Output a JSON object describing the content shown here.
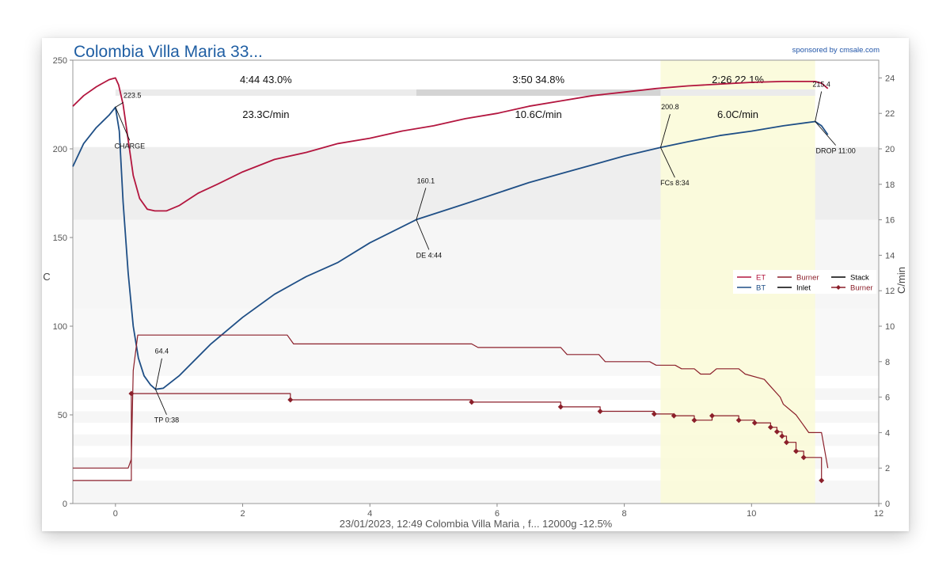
{
  "chart_data": {
    "type": "line",
    "title": "Colombia Villa Maria 33...",
    "sponsor": "sponsored by cmsale.com",
    "footer": "23/01/2023, 12:49 Colombia Villa Maria , f...   12000g   -12.5%",
    "ylabel": "C",
    "y2label": "C/min",
    "xlim": [
      -0.67,
      12
    ],
    "ylim": [
      0,
      250
    ],
    "y2lim": [
      0,
      25
    ],
    "x_ticks": [
      "0",
      "2",
      "4",
      "6",
      "8",
      "10",
      "12"
    ],
    "y_ticks": [
      "0",
      "50",
      "100",
      "150",
      "200",
      "250"
    ],
    "y2_ticks": [
      "0",
      "2",
      "4",
      "6",
      "8",
      "10",
      "12",
      "14",
      "16",
      "18",
      "20",
      "22",
      "24"
    ],
    "phases": [
      {
        "time": "4:44",
        "pct": "43.0%",
        "ror": "23.3C/min"
      },
      {
        "time": "3:50",
        "pct": "34.8%",
        "ror": "10.6C/min"
      },
      {
        "time": "2:26",
        "pct": "22.1%",
        "ror": "6.0C/min"
      }
    ],
    "phase_bounds": [
      0,
      4.73,
      8.57,
      11.0
    ],
    "colors": {
      "ET": "#b3163f",
      "BT": "#1f4f86",
      "Burner": "#8b1f2a",
      "highlight": "#fbfbd9"
    },
    "legend": {
      "position": "right",
      "entries": [
        {
          "name": "ET",
          "color": "#b3163f"
        },
        {
          "name": "Burner",
          "color": "#8b1f2a"
        },
        {
          "name": "Stack",
          "color": "#000000"
        },
        {
          "name": "BT",
          "color": "#1f4f86"
        },
        {
          "name": "Inlet",
          "color": "#000000"
        },
        {
          "name": "Burner",
          "color": "#8b1f2a"
        }
      ]
    },
    "annotations": [
      {
        "label": "223.5",
        "x": 0.0,
        "y": 223.5
      },
      {
        "label": "CHARGE",
        "x": 0.0,
        "y": 223.5
      },
      {
        "label": "64.4",
        "x": 0.63,
        "y": 64.4
      },
      {
        "label": "TP 0:38",
        "x": 0.63,
        "y": 64.4
      },
      {
        "label": "160.1",
        "x": 4.73,
        "y": 160.1
      },
      {
        "label": "DE 4:44",
        "x": 4.73,
        "y": 160.1
      },
      {
        "label": "200.8",
        "x": 8.57,
        "y": 200.8
      },
      {
        "label": "FCs 8:34",
        "x": 8.57,
        "y": 200.8
      },
      {
        "label": "215.4",
        "x": 11.0,
        "y": 215.4
      },
      {
        "label": "DROP 11:00",
        "x": 11.0,
        "y": 215.4
      }
    ],
    "series": [
      {
        "name": "ET",
        "x": [
          -0.67,
          -0.5,
          -0.3,
          -0.1,
          0.0,
          0.05,
          0.12,
          0.2,
          0.28,
          0.38,
          0.5,
          0.62,
          0.8,
          1.0,
          1.3,
          1.6,
          2.0,
          2.5,
          3.0,
          3.5,
          4.0,
          4.5,
          5.0,
          5.5,
          6.0,
          6.5,
          7.0,
          7.5,
          8.0,
          8.5,
          9.0,
          9.5,
          10.0,
          10.5,
          11.0,
          11.1,
          11.2
        ],
        "y": [
          224,
          230,
          235,
          239,
          240,
          236,
          225,
          205,
          185,
          172,
          166,
          165,
          165,
          168,
          175,
          180,
          187,
          194,
          198,
          203,
          206,
          210,
          213,
          217,
          220,
          224,
          227,
          230,
          232,
          234,
          235.5,
          236.5,
          237.5,
          238,
          238,
          237,
          234
        ]
      },
      {
        "name": "BT",
        "x": [
          -0.67,
          -0.5,
          -0.3,
          -0.1,
          0.0,
          0.06,
          0.12,
          0.2,
          0.28,
          0.36,
          0.45,
          0.55,
          0.63,
          0.75,
          1.0,
          1.5,
          2.0,
          2.5,
          3.0,
          3.5,
          4.0,
          4.73,
          5.5,
          6.0,
          6.5,
          7.0,
          7.5,
          8.0,
          8.57,
          9.0,
          9.5,
          10.0,
          10.5,
          11.0,
          11.1,
          11.2
        ],
        "y": [
          190,
          203,
          212,
          219,
          223.5,
          210,
          170,
          130,
          100,
          82,
          72,
          67,
          64.4,
          65,
          72,
          90,
          105,
          118,
          128,
          136,
          147,
          160.1,
          169,
          175,
          181,
          186,
          191,
          196,
          200.8,
          204,
          207.5,
          210,
          213,
          215.4,
          213,
          208
        ]
      },
      {
        "name": "Burner",
        "x": [
          -0.67,
          0.2,
          0.25,
          0.28,
          0.35,
          2.7,
          2.8,
          5.6,
          5.7,
          7.0,
          7.1,
          7.6,
          7.7,
          8.4,
          8.5,
          8.8,
          8.9,
          9.1,
          9.2,
          9.35,
          9.45,
          9.8,
          9.9,
          10.2,
          10.3,
          10.45,
          10.5,
          10.7,
          10.8,
          10.9,
          11.0,
          11.1,
          11.2
        ],
        "y": [
          20,
          20,
          25,
          75,
          95,
          95,
          90,
          90,
          88,
          88,
          84,
          84,
          80,
          80,
          78,
          78,
          76,
          76,
          73,
          73,
          76,
          76,
          73,
          70,
          66,
          60,
          56,
          50,
          45,
          40,
          40,
          40,
          20
        ]
      },
      {
        "name": "Burner",
        "x": [
          -0.67,
          0.25,
          0.25,
          2.75,
          2.75,
          5.6,
          5.6,
          7.0,
          7.0,
          7.62,
          7.62,
          8.47,
          8.47,
          8.78,
          8.78,
          9.1,
          9.1,
          9.38,
          9.38,
          9.8,
          9.8,
          10.05,
          10.05,
          10.3,
          10.3,
          10.4,
          10.4,
          10.48,
          10.48,
          10.55,
          10.55,
          10.7,
          10.7,
          10.82,
          10.82,
          11.1,
          11.1
        ],
        "y": [
          1.3,
          1.3,
          6.2,
          6.2,
          5.85,
          5.85,
          5.72,
          5.72,
          5.45,
          5.45,
          5.2,
          5.2,
          5.05,
          5.05,
          4.95,
          4.95,
          4.7,
          4.7,
          4.95,
          4.95,
          4.7,
          4.7,
          4.55,
          4.55,
          4.3,
          4.3,
          4.05,
          4.05,
          3.8,
          3.8,
          3.45,
          3.45,
          2.95,
          2.95,
          2.6,
          2.6,
          1.3
        ]
      }
    ],
    "burner_markers": {
      "x": [
        0.25,
        2.75,
        5.6,
        7.0,
        7.62,
        8.47,
        8.78,
        9.1,
        9.38,
        9.8,
        10.05,
        10.3,
        10.4,
        10.48,
        10.55,
        10.7,
        10.82,
        11.1
      ],
      "y": [
        6.2,
        5.85,
        5.72,
        5.45,
        5.2,
        5.05,
        4.95,
        4.7,
        4.95,
        4.7,
        4.55,
        4.3,
        4.05,
        3.8,
        3.45,
        2.95,
        2.6,
        1.3
      ]
    }
  }
}
